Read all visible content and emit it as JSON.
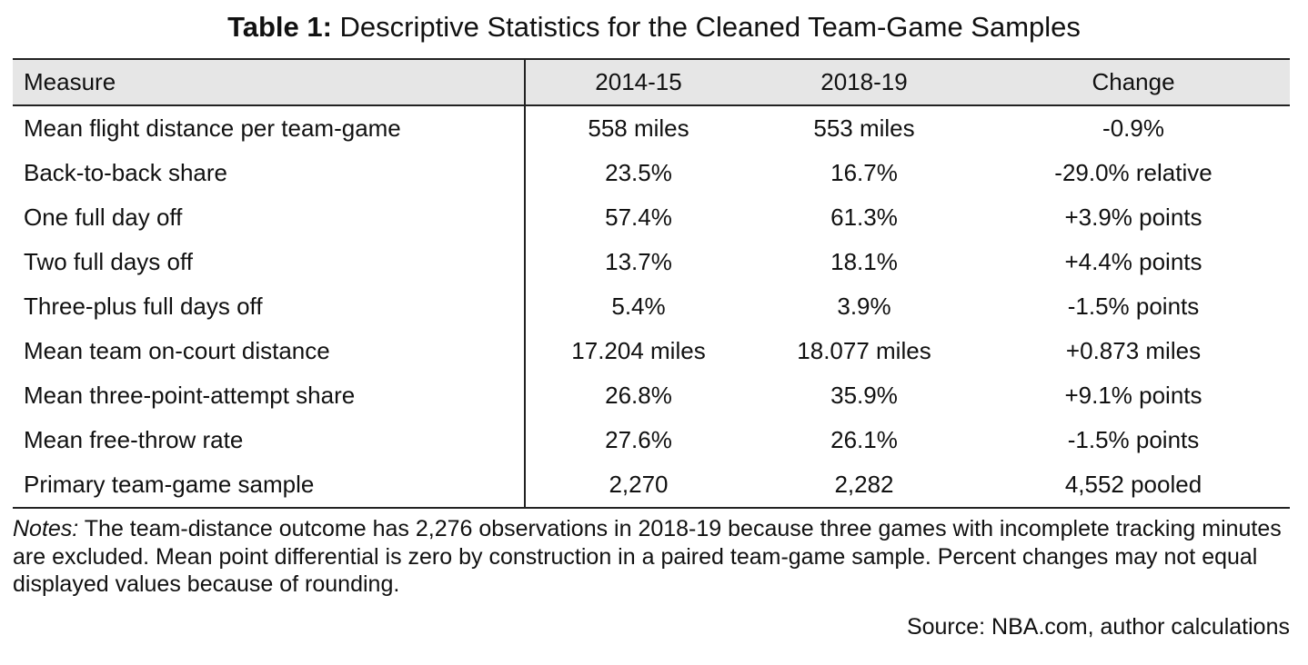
{
  "title": {
    "label": "Table 1:",
    "text": "Descriptive Statistics for the Cleaned Team-Game Samples"
  },
  "table": {
    "headers": [
      "Measure",
      "2014-15",
      "2018-19",
      "Change"
    ],
    "rows": [
      [
        "Mean flight distance per team-game",
        "558 miles",
        "553 miles",
        "-0.9%"
      ],
      [
        "Back-to-back share",
        "23.5%",
        "16.7%",
        "-29.0% relative"
      ],
      [
        "One full day off",
        "57.4%",
        "61.3%",
        "+3.9% points"
      ],
      [
        "Two full days off",
        "13.7%",
        "18.1%",
        "+4.4% points"
      ],
      [
        "Three-plus full days off",
        "5.4%",
        "3.9%",
        "-1.5% points"
      ],
      [
        "Mean team on-court distance",
        "17.204 miles",
        "18.077 miles",
        "+0.873 miles"
      ],
      [
        "Mean three-point-attempt share",
        "26.8%",
        "35.9%",
        "+9.1% points"
      ],
      [
        "Mean free-throw rate",
        "27.6%",
        "26.1%",
        "-1.5% points"
      ],
      [
        "Primary team-game sample",
        "2,270",
        "2,282",
        "4,552 pooled"
      ]
    ]
  },
  "notes": {
    "label": "Notes:",
    "text": "The team-distance outcome has 2,276 observations in 2018-19 because three games with incomplete tracking minutes are excluded. Mean point differential is zero by construction in a paired team-game sample. Percent changes may not equal displayed values because of rounding."
  },
  "source": "Source: NBA.com, author calculations"
}
